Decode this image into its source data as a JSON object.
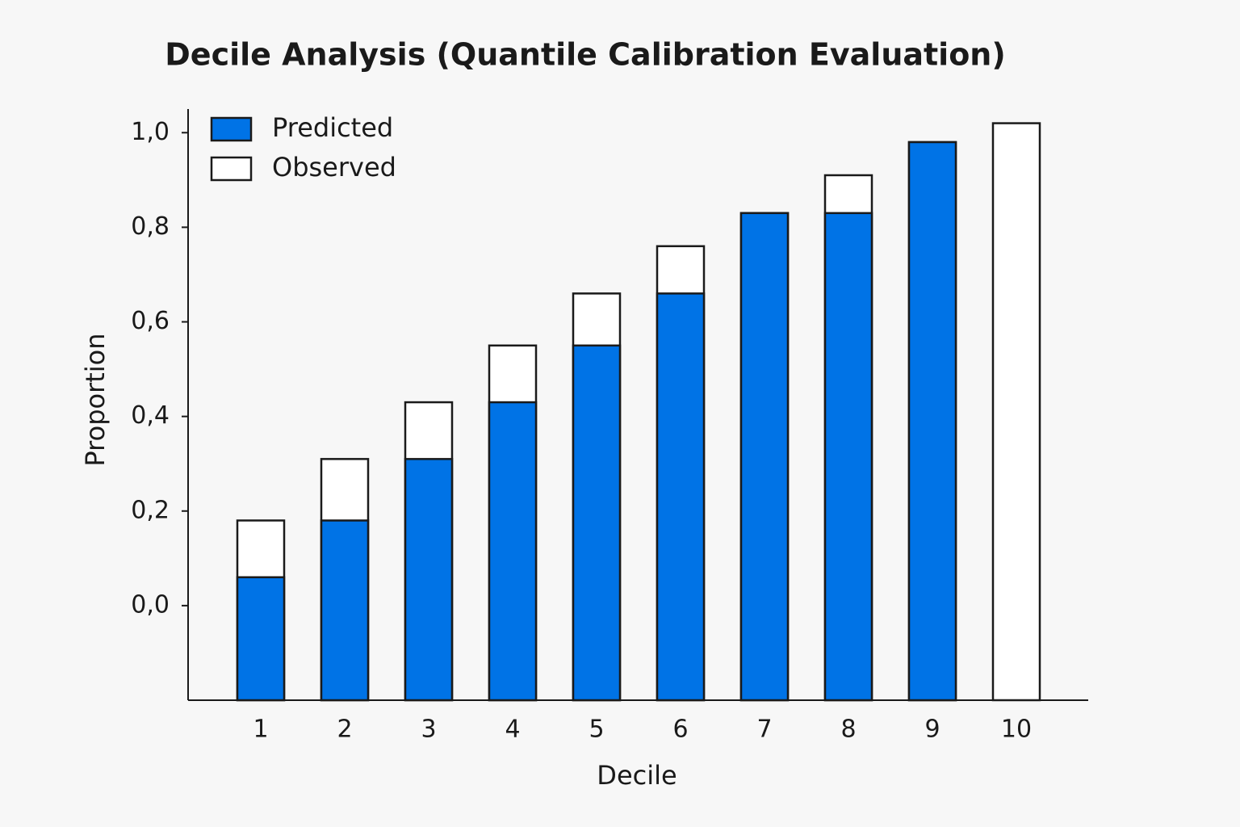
{
  "chart_data": {
    "type": "bar",
    "title": "Decile Analysis (Quantile Calibration Evaluation)",
    "x_label": "Decile",
    "y_label": "Proportion",
    "categories": [
      "1",
      "2",
      "3",
      "4",
      "5",
      "6",
      "7",
      "8",
      "9",
      "10"
    ],
    "series": [
      {
        "name": "Predicted",
        "color": "#0073e6",
        "values": [
          0.06,
          0.18,
          0.31,
          0.43,
          0.55,
          0.66,
          0.83,
          0.83,
          0.98,
          null
        ]
      },
      {
        "name": "Observed",
        "color": "#ffffff",
        "values": [
          0.18,
          0.31,
          0.43,
          0.55,
          0.66,
          0.76,
          0.83,
          0.91,
          0.98,
          1.02
        ]
      }
    ],
    "ylim": [
      -0.2,
      1.05
    ],
    "yticks": [
      {
        "value": 0,
        "label": "0,0"
      },
      {
        "value": 0.2,
        "label": "0,2"
      },
      {
        "value": 0.4,
        "label": "0,4"
      },
      {
        "value": 0.6,
        "label": "0,6"
      },
      {
        "value": 0.8,
        "label": "0,8"
      },
      {
        "value": 1,
        "label": "1,0"
      }
    ],
    "legend": "upper-left"
  }
}
